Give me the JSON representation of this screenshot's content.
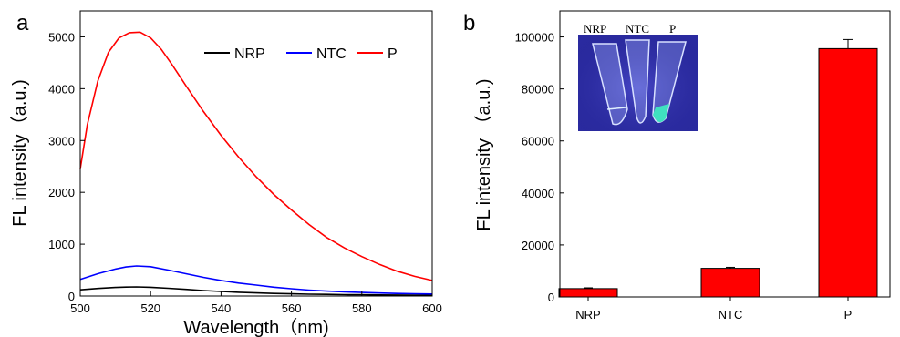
{
  "chart_data": [
    {
      "panel": "a",
      "type": "line",
      "xlabel": "Wavelength（nm)",
      "ylabel": "FL intensity（a.u.)",
      "xlim": [
        500,
        600
      ],
      "ylim": [
        0,
        5500
      ],
      "xticks": [
        500,
        520,
        540,
        560,
        580,
        600
      ],
      "yticks": [
        0,
        1000,
        2000,
        3000,
        4000,
        5000
      ],
      "grid": false,
      "legend_position": "top-right",
      "series": [
        {
          "name": "NRP",
          "color": "#000000",
          "x": [
            500,
            505,
            510,
            513,
            516,
            520,
            525,
            530,
            535,
            540,
            545,
            550,
            555,
            560,
            565,
            570,
            575,
            580,
            585,
            590,
            595,
            600
          ],
          "y": [
            120,
            145,
            165,
            172,
            175,
            168,
            150,
            128,
            105,
            88,
            72,
            60,
            50,
            42,
            36,
            31,
            27,
            24,
            21,
            19,
            17,
            15
          ]
        },
        {
          "name": "NTC",
          "color": "#0000ff",
          "x": [
            500,
            505,
            510,
            513,
            516,
            520,
            525,
            530,
            535,
            540,
            545,
            550,
            555,
            560,
            565,
            570,
            575,
            580,
            585,
            590,
            595,
            600
          ],
          "y": [
            320,
            430,
            520,
            560,
            580,
            565,
            500,
            430,
            360,
            300,
            250,
            210,
            170,
            140,
            115,
            95,
            80,
            68,
            58,
            50,
            44,
            38
          ]
        },
        {
          "name": "P",
          "color": "#ff0000",
          "x": [
            500,
            502,
            505,
            508,
            511,
            514,
            517,
            520,
            523,
            526,
            530,
            535,
            540,
            545,
            550,
            555,
            560,
            565,
            570,
            575,
            580,
            585,
            590,
            595,
            600
          ],
          "y": [
            2450,
            3300,
            4150,
            4700,
            4980,
            5080,
            5090,
            4980,
            4760,
            4470,
            4060,
            3560,
            3100,
            2680,
            2300,
            1960,
            1660,
            1380,
            1130,
            930,
            760,
            610,
            480,
            380,
            300
          ]
        }
      ]
    },
    {
      "panel": "b",
      "type": "bar",
      "categories": [
        "NRP",
        "NTC",
        "P"
      ],
      "values": [
        3200,
        11000,
        95500
      ],
      "errors": [
        300,
        400,
        3500
      ],
      "ylabel": "FL intensity （a.u.)",
      "ylim": [
        0,
        110000
      ],
      "yticks": [
        0,
        20000,
        40000,
        60000,
        80000,
        100000
      ],
      "bar_color": "#ff0000",
      "grid": false,
      "inset": {
        "labels": [
          "NRP",
          "NTC",
          "P"
        ],
        "background": "#2a2aa0",
        "tip_color": "#40e0c0"
      }
    }
  ],
  "panels": {
    "a": "a",
    "b": "b"
  }
}
